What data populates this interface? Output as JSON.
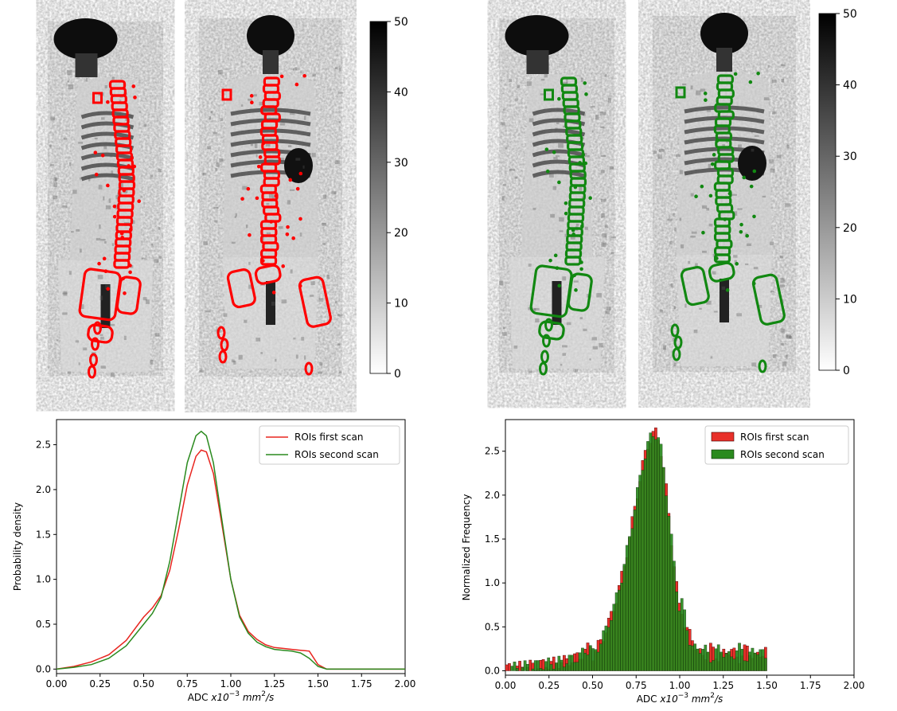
{
  "figure_panels": {
    "top_left": {
      "description_label": "Whole-body DWI views with red ROI contours (first scan)",
      "outline_color": "#ff0000",
      "colorbar": {
        "ticks": [
          "0",
          "10",
          "20",
          "30",
          "40",
          "50"
        ],
        "range": [
          0,
          50
        ]
      }
    },
    "top_right": {
      "outline_color": "#118811",
      "colorbar": {
        "ticks": [
          "0",
          "10",
          "20",
          "30",
          "40",
          "50"
        ],
        "range": [
          0,
          50
        ]
      }
    }
  },
  "chart_data": [
    {
      "type": "line",
      "id": "kde",
      "ylabel": "Probability density",
      "xlabel_prefix": "ADC ",
      "xlabel_math": "x10",
      "xlabel_exp": "−3",
      "xlabel_unit": " mm",
      "xlabel_unit_exp": "2",
      "xlabel_tail": "/s",
      "xlim": [
        0,
        2
      ],
      "ylim": [
        -0.05,
        2.78
      ],
      "xticks": [
        "0.00",
        "0.25",
        "0.50",
        "0.75",
        "1.00",
        "1.25",
        "1.50",
        "1.75",
        "2.00"
      ],
      "yticks": [
        "0.0",
        "0.5",
        "1.0",
        "1.5",
        "2.0",
        "2.5"
      ],
      "legend_position": "upper-right",
      "series": [
        {
          "name": "ROIs first scan",
          "color": "#e8251f",
          "x": [
            0.0,
            0.1,
            0.2,
            0.3,
            0.4,
            0.5,
            0.55,
            0.6,
            0.65,
            0.7,
            0.75,
            0.8,
            0.83,
            0.86,
            0.9,
            0.95,
            1.0,
            1.05,
            1.1,
            1.15,
            1.2,
            1.25,
            1.3,
            1.35,
            1.4,
            1.45,
            1.5,
            1.55,
            1.6,
            1.8,
            2.0
          ],
          "y": [
            0.0,
            0.03,
            0.08,
            0.16,
            0.32,
            0.58,
            0.68,
            0.82,
            1.1,
            1.55,
            2.05,
            2.37,
            2.44,
            2.42,
            2.18,
            1.6,
            1.0,
            0.6,
            0.42,
            0.33,
            0.27,
            0.24,
            0.23,
            0.22,
            0.21,
            0.2,
            0.05,
            0.0,
            0.0,
            0.0,
            0.0
          ]
        },
        {
          "name": "ROIs second scan",
          "color": "#2a8a1e",
          "x": [
            0.0,
            0.1,
            0.2,
            0.3,
            0.4,
            0.5,
            0.55,
            0.6,
            0.65,
            0.7,
            0.75,
            0.8,
            0.83,
            0.86,
            0.9,
            0.95,
            1.0,
            1.05,
            1.1,
            1.15,
            1.2,
            1.25,
            1.3,
            1.35,
            1.4,
            1.45,
            1.5,
            1.55,
            1.6,
            1.8,
            2.0
          ],
          "y": [
            0.0,
            0.02,
            0.05,
            0.12,
            0.26,
            0.5,
            0.62,
            0.8,
            1.2,
            1.75,
            2.3,
            2.6,
            2.65,
            2.6,
            2.3,
            1.65,
            1.0,
            0.58,
            0.4,
            0.3,
            0.25,
            0.22,
            0.21,
            0.2,
            0.18,
            0.12,
            0.03,
            0.0,
            0.0,
            0.0,
            0.0
          ]
        }
      ]
    },
    {
      "type": "bar",
      "id": "hist",
      "ylabel": "Normalized Frequency",
      "xlabel_prefix": "ADC ",
      "xlabel_math": "x10",
      "xlabel_exp": "−3",
      "xlabel_unit": " mm",
      "xlabel_unit_exp": "2",
      "xlabel_tail": "/s",
      "xlim": [
        0,
        2
      ],
      "ylim": [
        -0.05,
        2.86
      ],
      "bin_start": 0.0,
      "bin_width": 0.015,
      "xticks": [
        "0.00",
        "0.25",
        "0.50",
        "0.75",
        "1.00",
        "1.25",
        "1.50",
        "1.75",
        "2.00"
      ],
      "yticks": [
        "0.0",
        "0.5",
        "1.0",
        "1.5",
        "2.0",
        "2.5"
      ],
      "legend_position": "upper-right",
      "series": [
        {
          "name": "ROIs first scan",
          "color": "#e8302a",
          "edge": "#3a0000"
        },
        {
          "name": "ROIs second scan",
          "color": "#2a8a1e",
          "edge": "#0a2a06"
        }
      ]
    }
  ]
}
